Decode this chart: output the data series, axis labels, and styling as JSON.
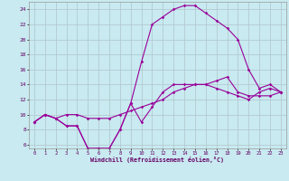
{
  "xlabel": "Windchill (Refroidissement éolien,°C)",
  "bg_color": "#c8eaf0",
  "line_color": "#990099",
  "grid_color": "#b0c4cc",
  "xlim": [
    -0.5,
    23.5
  ],
  "ylim": [
    5.5,
    25
  ],
  "xticks": [
    0,
    1,
    2,
    3,
    4,
    5,
    6,
    7,
    8,
    9,
    10,
    11,
    12,
    13,
    14,
    15,
    16,
    17,
    18,
    19,
    20,
    21,
    22,
    23
  ],
  "yticks": [
    6,
    8,
    10,
    12,
    14,
    16,
    18,
    20,
    22,
    24
  ],
  "line1_x": [
    0,
    1,
    2,
    3,
    4,
    5,
    6,
    7,
    8,
    9,
    10,
    11,
    12,
    13,
    14,
    15,
    16,
    17,
    18,
    19,
    20,
    21,
    22,
    23
  ],
  "line1_y": [
    9,
    10,
    9.5,
    8.5,
    8.5,
    5.5,
    5.5,
    5.5,
    8,
    11.5,
    9,
    11,
    13,
    14,
    14,
    14,
    14,
    13.5,
    13,
    12.5,
    12,
    13,
    13.5,
    13
  ],
  "line2_x": [
    0,
    1,
    2,
    3,
    4,
    5,
    6,
    7,
    8,
    9,
    10,
    11,
    12,
    13,
    14,
    15,
    16,
    17,
    18,
    19,
    20,
    21,
    22,
    23
  ],
  "line2_y": [
    9,
    10,
    9.5,
    8.5,
    8.5,
    5.5,
    5.5,
    5.5,
    8,
    11.5,
    17,
    22,
    23,
    24,
    24.5,
    24.5,
    23.5,
    22.5,
    21.5,
    20,
    16,
    13.5,
    14,
    13
  ],
  "line3_x": [
    0,
    1,
    2,
    3,
    4,
    5,
    6,
    7,
    8,
    9,
    10,
    11,
    12,
    13,
    14,
    15,
    16,
    17,
    18,
    19,
    20,
    21,
    22,
    23
  ],
  "line3_y": [
    9,
    10,
    9.5,
    10,
    10,
    9.5,
    9.5,
    9.5,
    10,
    10.5,
    11,
    11.5,
    12,
    13,
    13.5,
    14,
    14,
    14.5,
    15,
    13,
    12.5,
    12.5,
    12.5,
    13
  ]
}
